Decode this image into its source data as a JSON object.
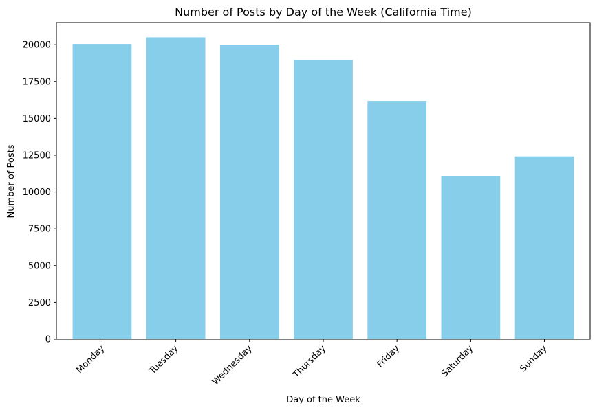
{
  "chart_data": {
    "type": "bar",
    "title": "Number of Posts by Day of the Week (California Time)",
    "xlabel": "Day of the Week",
    "ylabel": "Number of Posts",
    "categories": [
      "Monday",
      "Tuesday",
      "Wednesday",
      "Thursday",
      "Friday",
      "Saturday",
      "Sunday"
    ],
    "values": [
      20050,
      20500,
      20000,
      18950,
      16180,
      11100,
      12420
    ],
    "ylim": [
      0,
      21500
    ],
    "yticks": [
      0,
      2500,
      5000,
      7500,
      10000,
      12500,
      15000,
      17500,
      20000
    ],
    "bar_color": "#87CEEB",
    "grid": false,
    "legend": "none"
  }
}
